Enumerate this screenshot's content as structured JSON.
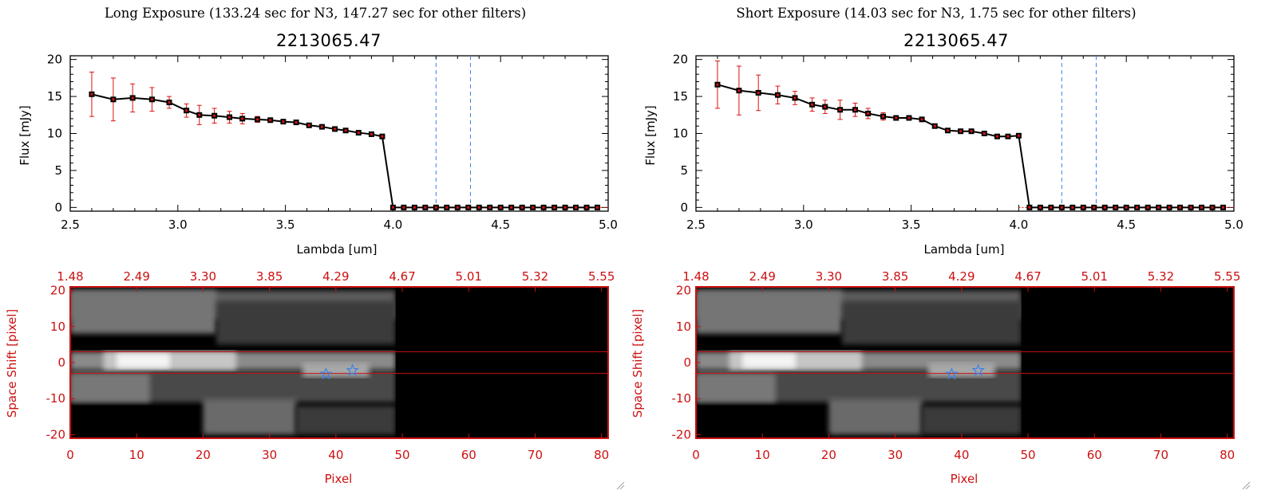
{
  "panels": [
    {
      "heading": "Long Exposure (133.24 sec for N3, 147.27 sec for other filters)",
      "title": "2213065.47",
      "xlabel": "Lambda [um]",
      "ylabel": "Flux [mJy]",
      "img_xlabel": "Pixel",
      "img_ylabel": "Space Shift [pixel]"
    },
    {
      "heading": "Short Exposure (14.03 sec for N3, 1.75 sec for other filters)",
      "title": "2213065.47",
      "xlabel": "Lambda [um]",
      "ylabel": "Flux [mJy]",
      "img_xlabel": "Pixel",
      "img_ylabel": "Space Shift [pixel]"
    }
  ],
  "chart_data": [
    {
      "type": "line",
      "title": "2213065.47",
      "xlabel": "Lambda [um]",
      "ylabel": "Flux [mJy]",
      "xlim": [
        2.5,
        5.0
      ],
      "ylim": [
        -0.5,
        20.5
      ],
      "xticks": [
        "2.5",
        "3.0",
        "3.5",
        "4.0",
        "4.5",
        "5.0"
      ],
      "yticks": [
        "0",
        "5",
        "10",
        "15",
        "20"
      ],
      "vlines": [
        4.2,
        4.36
      ],
      "x": [
        2.6,
        2.7,
        2.79,
        2.88,
        2.96,
        3.04,
        3.1,
        3.17,
        3.24,
        3.3,
        3.37,
        3.43,
        3.49,
        3.55,
        3.61,
        3.67,
        3.73,
        3.78,
        3.84,
        3.9,
        3.95,
        4.0,
        4.05,
        4.1,
        4.15,
        4.2,
        4.25,
        4.3,
        4.35,
        4.4,
        4.45,
        4.5,
        4.55,
        4.6,
        4.65,
        4.7,
        4.75,
        4.8,
        4.85,
        4.9,
        4.95
      ],
      "values": [
        15.3,
        14.6,
        14.8,
        14.6,
        14.2,
        13.1,
        12.5,
        12.4,
        12.2,
        12.0,
        11.9,
        11.8,
        11.6,
        11.5,
        11.1,
        10.9,
        10.6,
        10.4,
        10.1,
        9.9,
        9.6,
        0,
        0,
        0,
        0,
        0,
        0,
        0,
        0,
        0,
        0,
        0,
        0,
        0,
        0,
        0,
        0,
        0,
        0,
        0,
        0
      ],
      "errors": [
        3.0,
        2.9,
        1.9,
        1.6,
        0.8,
        0.9,
        1.3,
        1.0,
        0.8,
        0.7,
        0.4,
        0.3,
        0.2,
        0.2,
        0.2,
        0.2,
        0.2,
        0.2,
        0.2,
        0.2,
        0.2,
        0,
        0,
        0,
        0,
        0,
        0,
        0,
        0,
        0,
        0,
        0,
        0,
        0,
        0,
        0,
        0,
        0,
        0,
        0,
        0
      ]
    },
    {
      "type": "line",
      "title": "2213065.47",
      "xlabel": "Lambda [um]",
      "ylabel": "Flux [mJy]",
      "xlim": [
        2.5,
        5.0
      ],
      "ylim": [
        -0.5,
        20.5
      ],
      "xticks": [
        "2.5",
        "3.0",
        "3.5",
        "4.0",
        "4.5",
        "5.0"
      ],
      "yticks": [
        "0",
        "5",
        "10",
        "15",
        "20"
      ],
      "vlines": [
        4.2,
        4.36
      ],
      "x": [
        2.6,
        2.7,
        2.79,
        2.88,
        2.96,
        3.04,
        3.1,
        3.17,
        3.24,
        3.3,
        3.37,
        3.43,
        3.49,
        3.55,
        3.61,
        3.67,
        3.73,
        3.78,
        3.84,
        3.9,
        3.95,
        4.0,
        4.05,
        4.1,
        4.15,
        4.2,
        4.25,
        4.3,
        4.35,
        4.4,
        4.45,
        4.5,
        4.55,
        4.6,
        4.65,
        4.7,
        4.75,
        4.8,
        4.85,
        4.9,
        4.95
      ],
      "values": [
        16.6,
        15.8,
        15.5,
        15.2,
        14.8,
        13.9,
        13.6,
        13.2,
        13.2,
        12.7,
        12.3,
        12.1,
        12.1,
        11.9,
        11.0,
        10.4,
        10.3,
        10.3,
        10.0,
        9.6,
        9.6,
        9.7,
        0,
        0,
        0,
        0,
        0,
        0,
        0,
        0,
        0,
        0,
        0,
        0,
        0,
        0,
        0,
        0,
        0,
        0,
        0
      ],
      "errors": [
        3.2,
        3.3,
        2.4,
        1.2,
        0.9,
        0.9,
        0.9,
        1.3,
        0.9,
        0.7,
        0.5,
        0.3,
        0.2,
        0.2,
        0.2,
        0.2,
        0.2,
        0.2,
        0.2,
        0.2,
        0.2,
        0,
        0,
        0,
        0,
        0,
        0,
        0,
        0,
        0,
        0,
        0,
        0,
        0,
        0,
        0,
        0,
        0,
        0,
        0,
        0
      ]
    },
    {
      "type": "heatmap",
      "xlabel": "Pixel",
      "ylabel": "Space Shift [pixel]",
      "xlim": [
        0,
        81
      ],
      "ylim": [
        -21,
        21
      ],
      "xticks": [
        "0",
        "10",
        "20",
        "30",
        "40",
        "50",
        "60",
        "70",
        "80"
      ],
      "yticks": [
        "20",
        "10",
        "0",
        "-10",
        "-20"
      ],
      "top_ticks": [
        "1.48",
        "2.49",
        "3.30",
        "3.85",
        "4.29",
        "4.67",
        "5.01",
        "5.32",
        "5.55"
      ],
      "aperture_rows": [
        3,
        -3
      ],
      "stars": [
        {
          "x": 38.5,
          "y": -3.2
        },
        {
          "x": 42.5,
          "y": -2.2
        }
      ]
    },
    {
      "type": "heatmap",
      "xlabel": "Pixel",
      "ylabel": "Space Shift [pixel]",
      "xlim": [
        0,
        81
      ],
      "ylim": [
        -21,
        21
      ],
      "xticks": [
        "0",
        "10",
        "20",
        "30",
        "40",
        "50",
        "60",
        "70",
        "80"
      ],
      "yticks": [
        "20",
        "10",
        "0",
        "-10",
        "-20"
      ],
      "top_ticks": [
        "1.48",
        "2.49",
        "3.30",
        "3.85",
        "4.29",
        "4.67",
        "5.01",
        "5.32",
        "5.55"
      ],
      "aperture_rows": [
        3,
        -3
      ],
      "stars": [
        {
          "x": 38.5,
          "y": -3.2
        },
        {
          "x": 42.5,
          "y": -2.2
        }
      ]
    }
  ]
}
